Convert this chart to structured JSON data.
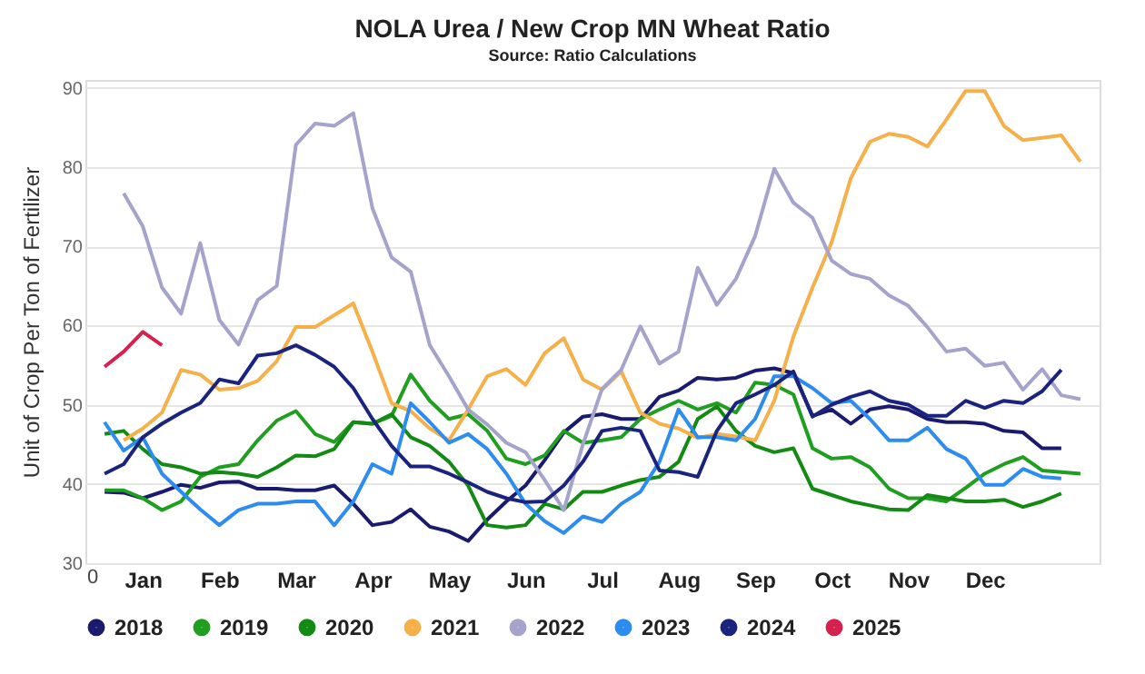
{
  "chart_data": {
    "type": "line",
    "title": "NOLA Urea / New Crop MN Wheat Ratio",
    "subtitle": "Source: Ratio Calculations",
    "ylabel": "Unit of Crop Per Ton of Fertilizer",
    "annotations": [
      "0"
    ],
    "categories": [
      null,
      null,
      "Jan",
      null,
      null,
      null,
      "Feb",
      null,
      null,
      null,
      "Mar",
      null,
      null,
      null,
      "Apr",
      null,
      null,
      null,
      "May",
      null,
      null,
      null,
      "Jun",
      null,
      null,
      null,
      "Jul",
      null,
      null,
      null,
      "Aug",
      null,
      null,
      null,
      "Sep",
      null,
      null,
      null,
      "Oct",
      null,
      null,
      null,
      "Nov",
      null,
      null,
      null,
      "Dec",
      null,
      null,
      null,
      null,
      null
    ],
    "ylim": [
      30,
      91
    ],
    "yticks": [
      30,
      40,
      50,
      60,
      70,
      80,
      90
    ],
    "grid": "y",
    "legend": "bottom",
    "marker": "none",
    "line_style": "solid",
    "series": [
      {
        "name": "2018",
        "color": "#1a1a6e",
        "values": [
          39,
          38.9,
          38.2,
          39,
          39.9,
          39.5,
          40.2,
          40.3,
          39.4,
          39.4,
          39.2,
          39.2,
          39.8,
          37.5,
          34.8,
          35.2,
          36.8,
          34.6,
          34,
          32.8,
          35.5,
          37.8,
          39.8,
          43,
          46.5,
          48.5,
          48.8,
          48.2,
          48.2,
          51,
          51.8,
          53.4,
          53.2,
          53.4,
          54.3,
          54.6,
          54,
          48.6,
          49.4,
          47.6,
          49.4,
          49.8,
          49.4,
          48.2,
          47.8,
          47.8,
          47.6,
          46.7,
          46.5,
          44.5,
          44.5,
          null
        ]
      },
      {
        "name": "2019",
        "color": "#1f9e1f",
        "values": [
          39.2,
          39.2,
          38.2,
          36.7,
          37.8,
          40.9,
          42.1,
          42.5,
          45.5,
          48,
          49.2,
          46.3,
          45.3,
          47.8,
          47.6,
          48.6,
          53.8,
          50.5,
          48.2,
          48.8,
          46.7,
          43.2,
          42.5,
          43.6,
          46.7,
          45.2,
          45.5,
          45.9,
          48.2,
          49.4,
          50.5,
          49.4,
          50.2,
          49,
          52.8,
          52.5,
          51.3,
          44.5,
          43.2,
          43.4,
          42.1,
          39.4,
          38.2,
          38.2,
          37.8,
          39.5,
          41.3,
          42.5,
          43.4,
          41.7,
          41.5,
          41.3
        ]
      },
      {
        "name": "2020",
        "color": "#138a13",
        "values": [
          46.3,
          46.7,
          44.4,
          42.5,
          42.1,
          41.3,
          41.5,
          41.3,
          40.9,
          42.1,
          43.6,
          43.5,
          44.4,
          47.8,
          47.6,
          48.8,
          45.9,
          44.8,
          42.8,
          39.8,
          34.8,
          34.5,
          34.8,
          37.5,
          36.8,
          39,
          39,
          39.8,
          40.5,
          40.9,
          42.8,
          48.2,
          49.8,
          46.7,
          44.8,
          44,
          44.5,
          39.4,
          38.6,
          37.8,
          37.3,
          36.8,
          36.7,
          38.6,
          38.2,
          37.8,
          37.8,
          38,
          37.1,
          37.8,
          38.8,
          null
        ]
      },
      {
        "name": "2021",
        "color": "#f5b04a",
        "values": [
          null,
          45.5,
          47,
          49,
          54.4,
          53.8,
          51.9,
          52.1,
          53,
          55.5,
          59.8,
          59.8,
          61.3,
          62.8,
          56.7,
          50.2,
          49.2,
          47,
          45.5,
          49.4,
          53.6,
          54.5,
          52.5,
          56.5,
          58.4,
          53.2,
          51.9,
          54.2,
          49,
          47.6,
          47,
          45.8,
          46.3,
          46,
          45.5,
          50.5,
          58.6,
          64.8,
          70.5,
          78.6,
          83.2,
          84.2,
          83.8,
          82.6,
          86,
          89.6,
          89.6,
          85.2,
          83.4,
          83.7,
          84,
          80.7
        ]
      },
      {
        "name": "2022",
        "color": "#a3a3cc",
        "values": [
          null,
          76.7,
          72.5,
          64.8,
          61.5,
          70.4,
          60.7,
          57.6,
          63.2,
          65,
          82.8,
          85.5,
          85.2,
          86.8,
          74.8,
          68.6,
          66.8,
          57.5,
          53.6,
          49.4,
          47.5,
          45.2,
          44,
          40.5,
          36.7,
          45,
          52,
          54.4,
          59.9,
          55.2,
          56.7,
          67.3,
          62.6,
          65.9,
          71.3,
          79.8,
          75.5,
          73.6,
          68.2,
          66.5,
          65.9,
          63.8,
          62.5,
          59.8,
          56.7,
          57.1,
          54.9,
          55.3,
          51.9,
          54.5,
          51.2,
          50.7
        ]
      },
      {
        "name": "2023",
        "color": "#2d8cf0",
        "values": [
          47.8,
          44.2,
          45.9,
          41.3,
          39,
          36.8,
          34.8,
          36.7,
          37.5,
          37.5,
          37.8,
          37.8,
          34.8,
          37.8,
          42.5,
          41.3,
          50.2,
          47.8,
          45.2,
          46.3,
          44.4,
          41.3,
          37.5,
          35.3,
          33.8,
          35.9,
          35.2,
          37.5,
          39,
          42.8,
          49.4,
          45.9,
          45.9,
          45.5,
          48.2,
          53.6,
          53.6,
          52.1,
          50.2,
          50.5,
          48.2,
          45.5,
          45.5,
          47.1,
          44.4,
          43.2,
          39.9,
          39.9,
          41.9,
          40.9,
          40.7,
          null
        ]
      },
      {
        "name": "2024",
        "color": "#1a237e",
        "values": [
          41.3,
          42.5,
          45.9,
          47.6,
          49,
          50.2,
          53.2,
          52.7,
          56.2,
          56.5,
          57.5,
          56.3,
          54.8,
          52.1,
          48.2,
          44.8,
          42.2,
          42.2,
          41.3,
          40.2,
          39,
          38.2,
          37.7,
          37.8,
          39.8,
          42.8,
          46.7,
          47.1,
          46.7,
          41.7,
          41.5,
          40.9,
          46.7,
          50.2,
          51.3,
          52.5,
          54.2,
          48.5,
          50,
          51,
          51.7,
          50.5,
          50,
          48.6,
          48.6,
          50.5,
          49.6,
          50.5,
          50.2,
          51.7,
          54.4,
          null
        ]
      },
      {
        "name": "2025",
        "color": "#d6204e",
        "values": [
          54.8,
          56.7,
          59.2,
          57.5,
          null,
          null,
          null,
          null,
          null,
          null,
          null,
          null,
          null,
          null,
          null,
          null,
          null,
          null,
          null,
          null,
          null,
          null,
          null,
          null,
          null,
          null,
          null,
          null,
          null,
          null,
          null,
          null,
          null,
          null,
          null,
          null,
          null,
          null,
          null,
          null,
          null,
          null,
          null,
          null,
          null,
          null,
          null,
          null,
          null,
          null,
          null,
          null
        ]
      }
    ]
  }
}
